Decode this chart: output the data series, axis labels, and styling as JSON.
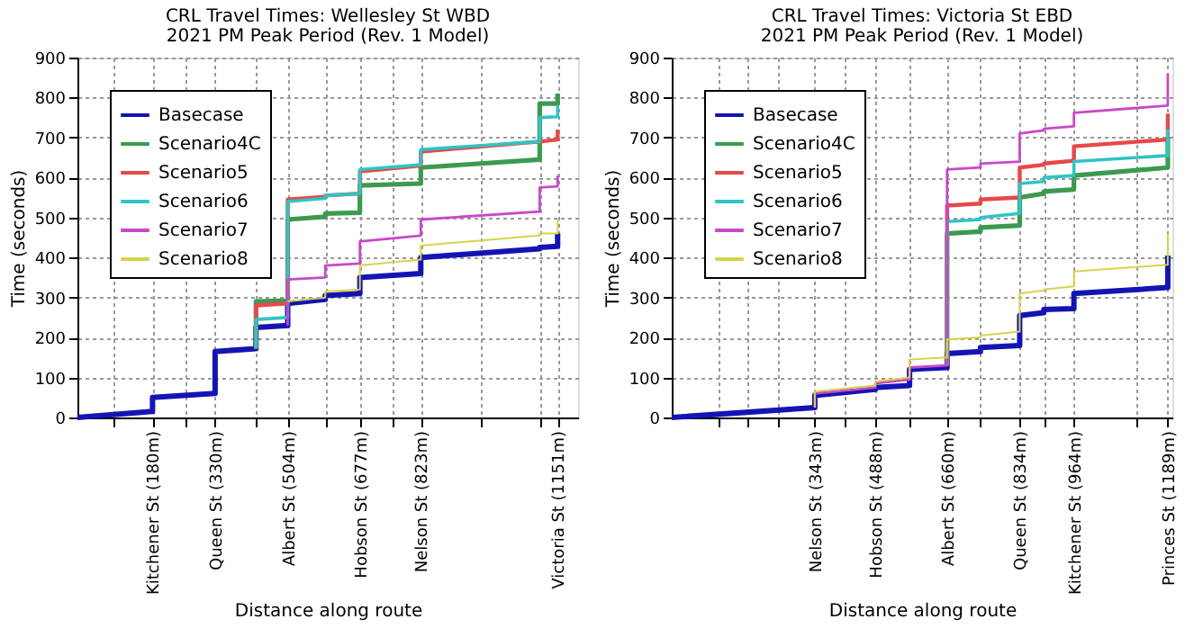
{
  "chart_data": [
    {
      "type": "line",
      "title": "CRL Travel Times: Wellesley St WBD",
      "subtitle": "2021 PM Peak Period (Rev. 1 Model)",
      "xlabel": "Distance along route",
      "ylabel": "Time (seconds)",
      "xlim": [
        0,
        1200
      ],
      "ylim": [
        0,
        900
      ],
      "yticks": [
        0,
        100,
        200,
        300,
        400,
        500,
        600,
        700,
        800,
        900
      ],
      "xticks": [
        {
          "value": 87,
          "label": null
        },
        {
          "value": 180,
          "label": "Kitchener St (180m)"
        },
        {
          "value": 261,
          "label": null
        },
        {
          "value": 330,
          "label": "Queen St (330m)"
        },
        {
          "value": 428,
          "label": null
        },
        {
          "value": 504,
          "label": "Albert St (504m)"
        },
        {
          "value": 594,
          "label": null
        },
        {
          "value": 677,
          "label": "Hobson St (677m)"
        },
        {
          "value": 754,
          "label": null
        },
        {
          "value": 823,
          "label": "Nelson St (823m)"
        },
        {
          "value": 969,
          "label": null
        },
        {
          "value": 1108,
          "label": null
        },
        {
          "value": 1151,
          "label": "Victoria St (1151m)"
        }
      ],
      "grid": true,
      "legend": "top left",
      "marker": "none",
      "line_style": "solid",
      "series": [
        {
          "name": "Basecase",
          "color": "#1414b4",
          "x": [
            0,
            180,
            180,
            330,
            330,
            428,
            428,
            504,
            504,
            594,
            594,
            677,
            677,
            823,
            823,
            1108,
            1108,
            1151,
            1151
          ],
          "values": [
            0,
            15,
            50,
            60,
            165,
            172,
            225,
            230,
            285,
            295,
            305,
            310,
            350,
            360,
            400,
            422,
            425,
            428,
            460
          ]
        },
        {
          "name": "Scenario4C",
          "color": "#3c9a50",
          "x": [
            428,
            428,
            504,
            504,
            594,
            594,
            677,
            677,
            823,
            823,
            1108,
            1108,
            1151,
            1151
          ],
          "values": [
            172,
            290,
            292,
            495,
            502,
            510,
            512,
            580,
            585,
            625,
            645,
            785,
            785,
            810
          ]
        },
        {
          "name": "Scenario5",
          "color": "#e84848",
          "x": [
            428,
            428,
            504,
            504,
            594,
            594,
            677,
            677,
            823,
            823,
            1108,
            1108,
            1151,
            1151
          ],
          "values": [
            172,
            280,
            285,
            545,
            552,
            555,
            560,
            615,
            630,
            665,
            690,
            690,
            695,
            720
          ]
        },
        {
          "name": "Scenario6",
          "color": "#30c4c4",
          "x": [
            428,
            428,
            504,
            504,
            594,
            594,
            677,
            677,
            823,
            823,
            1108,
            1108,
            1151,
            1151
          ],
          "values": [
            172,
            245,
            250,
            540,
            548,
            555,
            560,
            620,
            632,
            670,
            690,
            750,
            752,
            780
          ]
        },
        {
          "name": "Scenario7",
          "color": "#c848c8",
          "x": [
            504,
            504,
            594,
            594,
            677,
            677,
            823,
            823,
            1108,
            1108,
            1151,
            1151
          ],
          "values": [
            230,
            345,
            350,
            380,
            385,
            440,
            455,
            495,
            515,
            575,
            578,
            605
          ]
        },
        {
          "name": "Scenario8",
          "color": "#d4d44c",
          "x": [
            504,
            594,
            594,
            677,
            677,
            823,
            823,
            1108,
            1108,
            1151,
            1151
          ],
          "values": [
            290,
            300,
            315,
            320,
            380,
            395,
            430,
            455,
            460,
            460,
            495
          ]
        }
      ]
    },
    {
      "type": "line",
      "title": "CRL Travel Times: Victoria St EBD",
      "subtitle": "2021 PM Peak Period (Rev. 1 Model)",
      "xlabel": "Distance along route",
      "ylabel": "Time (seconds)",
      "xlim": [
        0,
        1200
      ],
      "ylim": [
        0,
        900
      ],
      "yticks": [
        0,
        100,
        200,
        300,
        400,
        500,
        600,
        700,
        800,
        900
      ],
      "xticks": [
        {
          "value": 111,
          "label": null
        },
        {
          "value": 180,
          "label": null
        },
        {
          "value": 256,
          "label": null
        },
        {
          "value": 343,
          "label": "Nelson St (343m)"
        },
        {
          "value": 415,
          "label": null
        },
        {
          "value": 488,
          "label": "Hobson St (488m)"
        },
        {
          "value": 570,
          "label": null
        },
        {
          "value": 660,
          "label": "Albert St (660m)"
        },
        {
          "value": 740,
          "label": null
        },
        {
          "value": 834,
          "label": "Queen St (834m)"
        },
        {
          "value": 892,
          "label": null
        },
        {
          "value": 964,
          "label": "Kitchener St (964m)"
        },
        {
          "value": 1113,
          "label": null
        },
        {
          "value": 1189,
          "label": "Princes St (1189m)"
        }
      ],
      "grid": true,
      "legend": "top left",
      "marker": "none",
      "line_style": "solid",
      "series": [
        {
          "name": "Basecase",
          "color": "#1414b4",
          "x": [
            0,
            343,
            343,
            488,
            488,
            570,
            570,
            660,
            660,
            740,
            740,
            834,
            834,
            892,
            892,
            964,
            964,
            1189,
            1189
          ],
          "values": [
            0,
            25,
            55,
            70,
            75,
            80,
            120,
            125,
            160,
            165,
            175,
            180,
            255,
            262,
            270,
            272,
            310,
            325,
            405
          ]
        },
        {
          "name": "Scenario4C",
          "color": "#3c9a50",
          "x": [
            660,
            660,
            740,
            740,
            834,
            834,
            892,
            892,
            964,
            964,
            1189,
            1189
          ],
          "values": [
            130,
            460,
            465,
            475,
            480,
            550,
            560,
            565,
            570,
            605,
            625,
            700
          ]
        },
        {
          "name": "Scenario5",
          "color": "#e84848",
          "x": [
            660,
            660,
            740,
            740,
            834,
            834,
            892,
            892,
            964,
            964,
            1189,
            1189
          ],
          "values": [
            130,
            530,
            535,
            545,
            550,
            625,
            632,
            635,
            642,
            678,
            695,
            760
          ]
        },
        {
          "name": "Scenario6",
          "color": "#30c4c4",
          "x": [
            660,
            660,
            740,
            740,
            834,
            834,
            892,
            892,
            964,
            964,
            1189,
            1189
          ],
          "values": [
            130,
            490,
            495,
            500,
            510,
            585,
            590,
            600,
            605,
            640,
            655,
            720
          ]
        },
        {
          "name": "Scenario7",
          "color": "#c848c8",
          "x": [
            343,
            343,
            488,
            488,
            570,
            570,
            660,
            660,
            740,
            740,
            834,
            834,
            892,
            892,
            964,
            964,
            1189,
            1189
          ],
          "values": [
            25,
            60,
            75,
            85,
            95,
            125,
            130,
            620,
            625,
            635,
            640,
            710,
            718,
            722,
            728,
            762,
            780,
            860
          ]
        },
        {
          "name": "Scenario8",
          "color": "#d4d44c",
          "x": [
            343,
            343,
            488,
            488,
            570,
            570,
            660,
            660,
            740,
            740,
            834,
            834,
            892,
            892,
            964,
            964,
            1189,
            1189
          ],
          "values": [
            25,
            65,
            80,
            90,
            100,
            145,
            150,
            195,
            200,
            205,
            215,
            310,
            318,
            320,
            328,
            365,
            382,
            460
          ]
        }
      ]
    }
  ]
}
